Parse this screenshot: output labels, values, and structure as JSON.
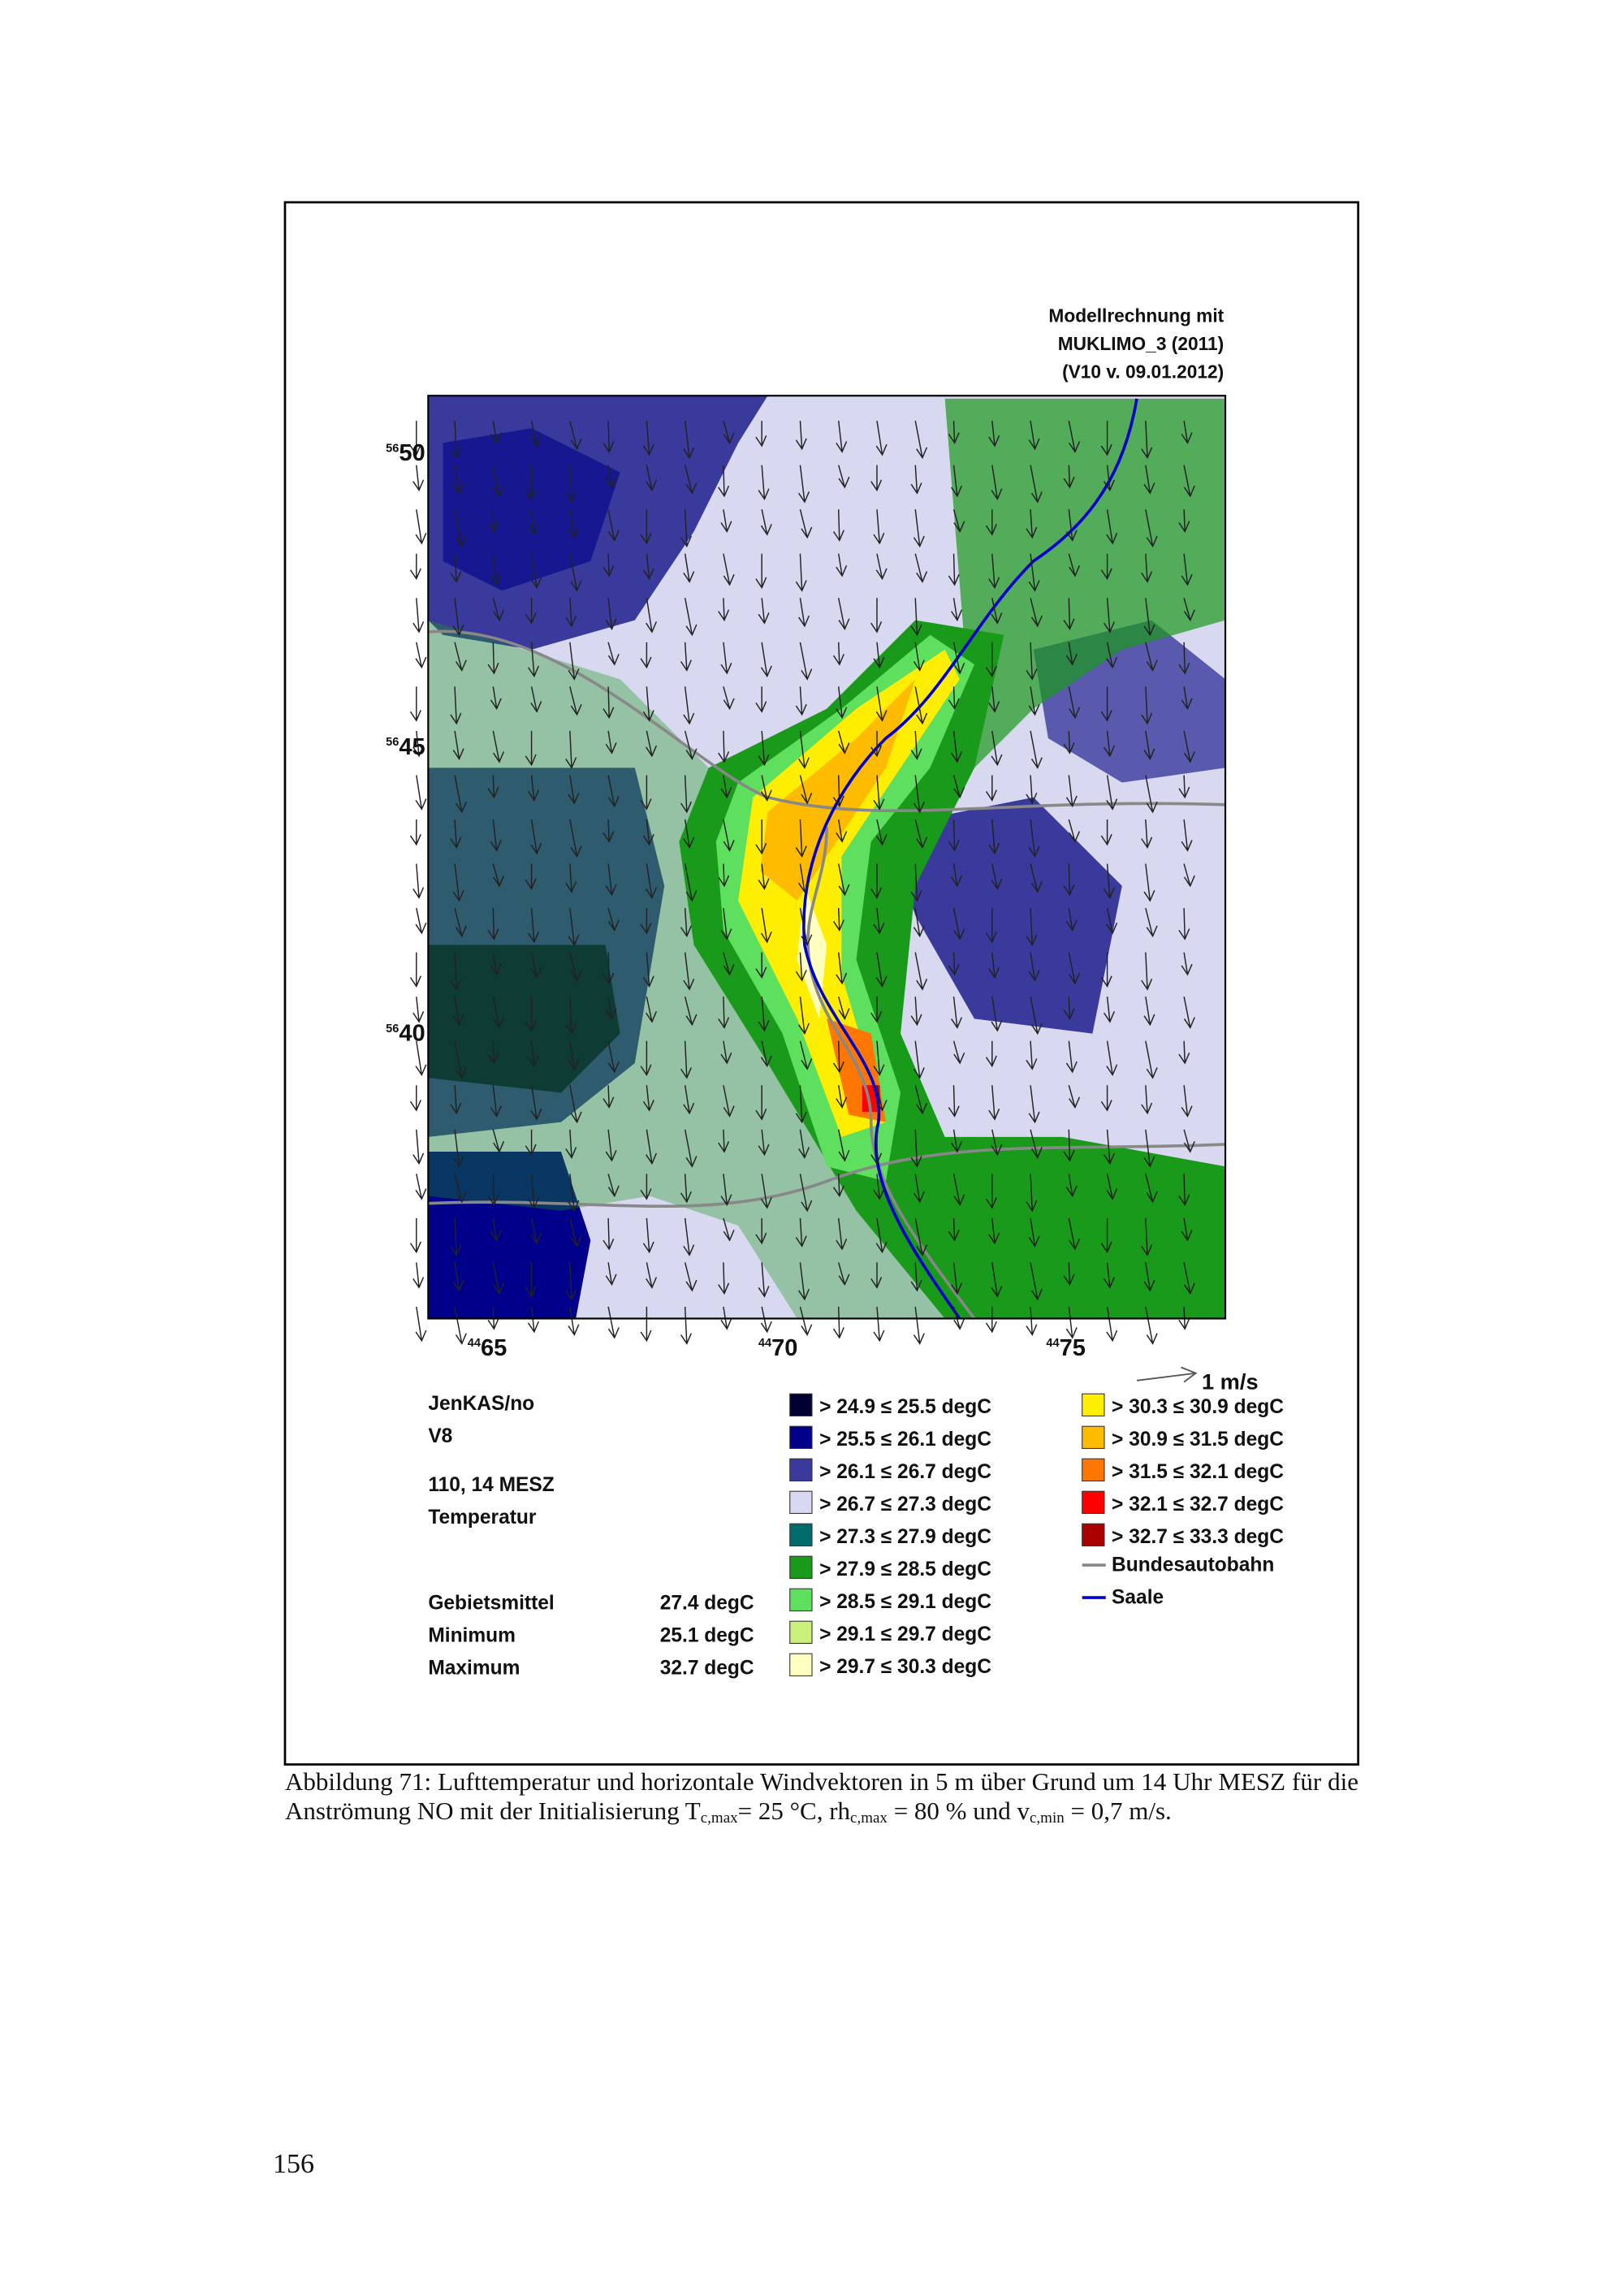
{
  "figure": {
    "model_note": [
      "Modellrechnung mit",
      "MUKLIMO_3 (2011)",
      "(V10 v. 09.01.2012)"
    ],
    "y_axis_labels": [
      {
        "prefix": "56",
        "main": "50"
      },
      {
        "prefix": "56",
        "main": "45"
      },
      {
        "prefix": "56",
        "main": "40"
      }
    ],
    "x_axis_labels": [
      {
        "prefix": "44",
        "main": "65"
      },
      {
        "prefix": "44",
        "main": "70"
      },
      {
        "prefix": "44",
        "main": "75"
      }
    ],
    "scale_label": "1 m/s",
    "info": [
      "JenKAS/no",
      "V8",
      "110, 14 MESZ",
      "Temperatur"
    ],
    "stats": [
      {
        "label": "Gebietsmittel",
        "value": "27.4 degC"
      },
      {
        "label": "Minimum",
        "value": "25.1 degC"
      },
      {
        "label": "Maximum",
        "value": "32.7 degC"
      }
    ],
    "legend": [
      {
        "label": "> 24.9 ≤ 25.5 degC",
        "color": "#000033"
      },
      {
        "label": "> 25.5 ≤ 26.1 degC",
        "color": "#00008b"
      },
      {
        "label": "> 26.1 ≤ 26.7 degC",
        "color": "#3a3a9c"
      },
      {
        "label": "> 26.7 ≤ 27.3 degC",
        "color": "#d8d8f0"
      },
      {
        "label": "> 27.3 ≤ 27.9 degC",
        "color": "#006b6b"
      },
      {
        "label": "> 27.9 ≤ 28.5 degC",
        "color": "#1a9a1a"
      },
      {
        "label": "> 28.5 ≤ 29.1 degC",
        "color": "#5ee05e"
      },
      {
        "label": "> 29.1 ≤ 29.7 degC",
        "color": "#c8f07a"
      },
      {
        "label": "> 29.7 ≤ 30.3 degC",
        "color": "#ffffc0"
      },
      {
        "label": "> 30.3 ≤ 30.9 degC",
        "color": "#ffee00"
      },
      {
        "label": "> 30.9 ≤ 31.5 degC",
        "color": "#ffbb00"
      },
      {
        "label": "> 31.5 ≤ 32.1 degC",
        "color": "#ff7700"
      },
      {
        "label": "> 32.1 ≤ 32.7 degC",
        "color": "#ff0000"
      },
      {
        "label": "> 32.7 ≤ 33.3 degC",
        "color": "#aa0000"
      }
    ],
    "line_legend": [
      {
        "label": "Bundesautobahn",
        "color": "#888888"
      },
      {
        "label": "Saale",
        "color": "#0000cc"
      }
    ]
  },
  "caption": {
    "parts": [
      "Abbildung 71: Lufttemperatur und horizontale Windvektoren in 5 m über Grund um 14 Uhr MESZ für die Anströmung NO mit der Initialisierung T",
      "c,max",
      "= 25 °C, rh",
      "c,max",
      " = 80 % und v",
      "c,min",
      " = 0,7 m/s."
    ]
  },
  "page_number": "156"
}
